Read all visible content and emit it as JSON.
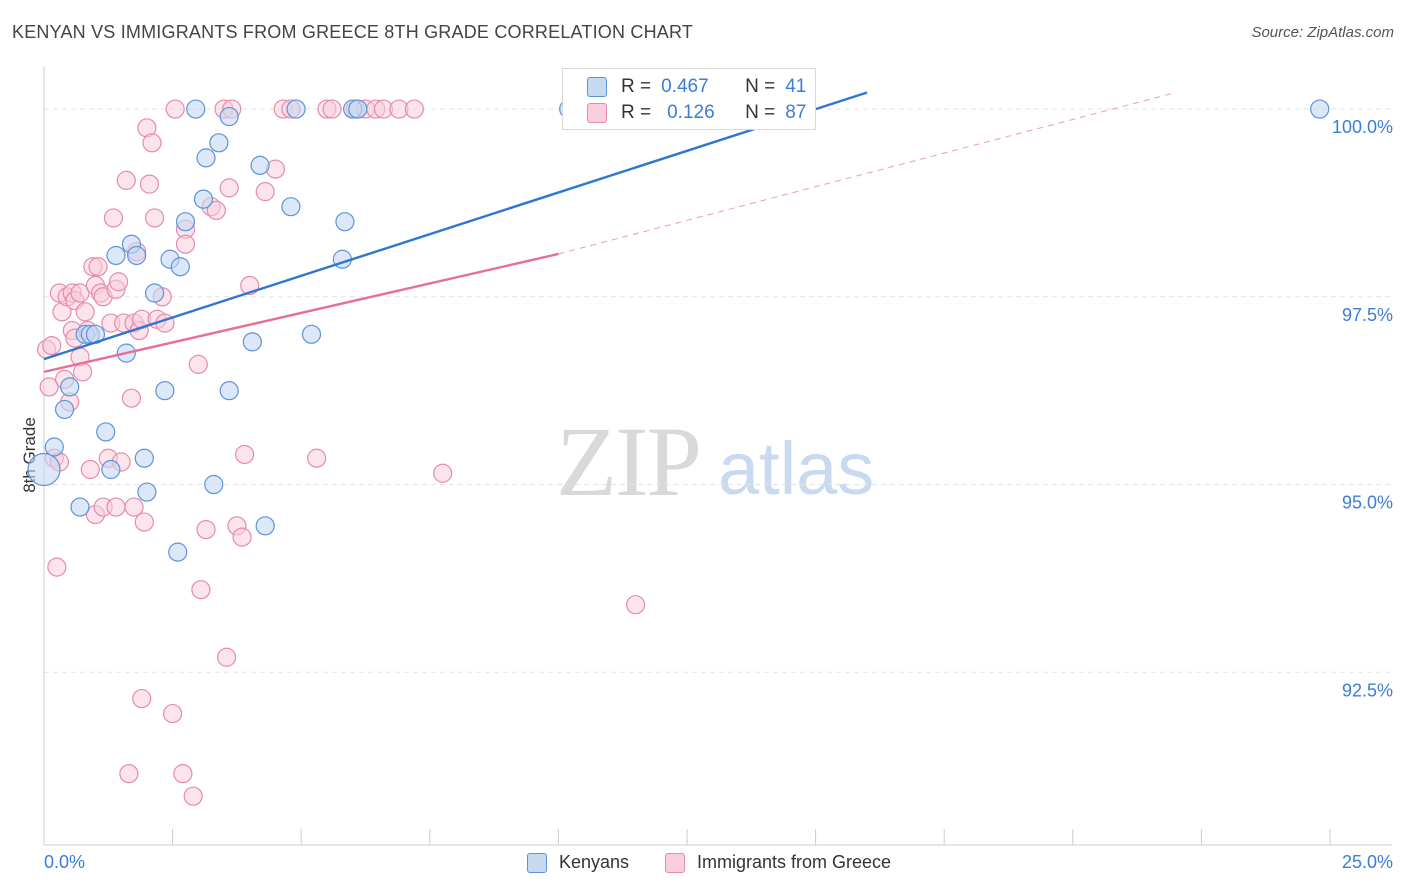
{
  "title": "KENYAN VS IMMIGRANTS FROM GREECE 8TH GRADE CORRELATION CHART",
  "source": "Source: ZipAtlas.com",
  "watermark": {
    "zip": "ZIP",
    "atlas": "atlas"
  },
  "stats": [
    {
      "r_label": "R =",
      "r_value": "0.467",
      "n_label": "N =",
      "n_value": "41"
    },
    {
      "r_label": "R =",
      "r_value": "0.126",
      "n_label": "N =",
      "n_value": "87"
    }
  ],
  "legend": [
    "Kenyans",
    "Immigrants from Greece"
  ],
  "colors": {
    "blue_fill": "#c5d9f3",
    "blue_stroke": "#5d94d8",
    "blue_line": "#2f76d2",
    "pink_fill": "#f8cedd",
    "pink_stroke": "#e88aab",
    "pink_line": "#e56f98",
    "grid": "#e3e3e3",
    "tick_label": "#3b7dd8"
  },
  "chart_data": {
    "type": "scatter",
    "title": "KENYAN VS IMMIGRANTS FROM GREECE 8TH GRADE CORRELATION CHART",
    "xlabel": "",
    "ylabel": "8th Grade",
    "xlim": [
      0,
      25
    ],
    "ylim": [
      90.2,
      100.4
    ],
    "x_tick_labels": [
      "0.0%",
      "25.0%"
    ],
    "y_ticks": [
      100.0,
      97.5,
      95.0,
      92.5
    ],
    "y_tick_labels": [
      "100.0%",
      "97.5%",
      "95.0%",
      "92.5%"
    ],
    "grid": true,
    "series": [
      {
        "name": "Kenyans",
        "r": 0.467,
        "n": 41,
        "trend": {
          "x0": 0.0,
          "y0": 96.67,
          "x1": 16.0,
          "y1": 100.22,
          "dashed_to": null
        },
        "points": [
          [
            0.2,
            95.5
          ],
          [
            0.0,
            95.2
          ],
          [
            0.4,
            96.0
          ],
          [
            0.5,
            96.3
          ],
          [
            0.7,
            94.7
          ],
          [
            0.8,
            97.0
          ],
          [
            0.9,
            97.0
          ],
          [
            1.0,
            97.0
          ],
          [
            1.2,
            95.7
          ],
          [
            1.3,
            95.2
          ],
          [
            1.4,
            98.05
          ],
          [
            1.6,
            96.75
          ],
          [
            1.7,
            98.2
          ],
          [
            1.8,
            98.05
          ],
          [
            1.95,
            95.35
          ],
          [
            2.0,
            94.9
          ],
          [
            2.15,
            97.55
          ],
          [
            2.35,
            96.25
          ],
          [
            2.45,
            98.0
          ],
          [
            2.6,
            94.1
          ],
          [
            2.65,
            97.9
          ],
          [
            2.75,
            98.5
          ],
          [
            2.95,
            100.0
          ],
          [
            3.1,
            98.8
          ],
          [
            3.15,
            99.35
          ],
          [
            3.3,
            95.0
          ],
          [
            3.4,
            99.55
          ],
          [
            3.6,
            99.9
          ],
          [
            3.6,
            96.25
          ],
          [
            4.05,
            96.9
          ],
          [
            4.2,
            99.25
          ],
          [
            4.3,
            94.45
          ],
          [
            4.8,
            98.7
          ],
          [
            4.9,
            100.0
          ],
          [
            5.2,
            97.0
          ],
          [
            5.8,
            98.0
          ],
          [
            5.85,
            98.5
          ],
          [
            6.0,
            100.0
          ],
          [
            6.1,
            100.0
          ],
          [
            10.2,
            100.0
          ],
          [
            24.8,
            100.0
          ]
        ]
      },
      {
        "name": "Immigrants from Greece",
        "r": 0.126,
        "n": 87,
        "trend": {
          "x0": 0.0,
          "y0": 96.5,
          "x1": 10.0,
          "y1": 98.07,
          "dashed_to": [
            22.0,
            100.22
          ]
        },
        "points": [
          [
            0.05,
            96.8
          ],
          [
            0.1,
            96.3
          ],
          [
            0.15,
            96.85
          ],
          [
            0.2,
            95.35
          ],
          [
            0.25,
            93.9
          ],
          [
            0.3,
            97.55
          ],
          [
            0.3,
            95.3
          ],
          [
            0.35,
            97.3
          ],
          [
            0.4,
            96.4
          ],
          [
            0.45,
            97.5
          ],
          [
            0.5,
            96.1
          ],
          [
            0.55,
            97.05
          ],
          [
            0.55,
            97.55
          ],
          [
            0.6,
            96.95
          ],
          [
            0.6,
            97.45
          ],
          [
            0.7,
            96.7
          ],
          [
            0.7,
            97.55
          ],
          [
            0.75,
            96.5
          ],
          [
            0.8,
            97.3
          ],
          [
            0.85,
            97.05
          ],
          [
            0.9,
            95.2
          ],
          [
            0.95,
            97.9
          ],
          [
            1.0,
            97.65
          ],
          [
            1.0,
            94.6
          ],
          [
            1.05,
            97.9
          ],
          [
            1.1,
            97.55
          ],
          [
            1.15,
            94.7
          ],
          [
            1.15,
            97.5
          ],
          [
            1.25,
            95.35
          ],
          [
            1.3,
            97.15
          ],
          [
            1.35,
            98.55
          ],
          [
            1.4,
            97.6
          ],
          [
            1.4,
            94.7
          ],
          [
            1.45,
            97.7
          ],
          [
            1.5,
            95.3
          ],
          [
            1.55,
            97.15
          ],
          [
            1.6,
            99.05
          ],
          [
            1.65,
            91.15
          ],
          [
            1.7,
            96.15
          ],
          [
            1.75,
            97.15
          ],
          [
            1.75,
            94.7
          ],
          [
            1.8,
            98.1
          ],
          [
            1.85,
            97.05
          ],
          [
            1.9,
            97.2
          ],
          [
            1.9,
            92.15
          ],
          [
            1.95,
            94.5
          ],
          [
            2.0,
            99.75
          ],
          [
            2.05,
            99.0
          ],
          [
            2.1,
            99.55
          ],
          [
            2.15,
            98.55
          ],
          [
            2.2,
            97.2
          ],
          [
            2.3,
            97.5
          ],
          [
            2.35,
            97.15
          ],
          [
            2.5,
            91.95
          ],
          [
            2.55,
            100.0
          ],
          [
            2.7,
            91.15
          ],
          [
            2.75,
            98.4
          ],
          [
            2.75,
            98.2
          ],
          [
            2.9,
            90.85
          ],
          [
            3.0,
            96.6
          ],
          [
            3.05,
            93.6
          ],
          [
            3.15,
            94.4
          ],
          [
            3.25,
            98.7
          ],
          [
            3.35,
            98.65
          ],
          [
            3.5,
            100.0
          ],
          [
            3.55,
            92.7
          ],
          [
            3.6,
            98.95
          ],
          [
            3.65,
            100.0
          ],
          [
            3.75,
            94.45
          ],
          [
            3.85,
            94.3
          ],
          [
            3.9,
            95.4
          ],
          [
            4.0,
            97.65
          ],
          [
            4.3,
            98.9
          ],
          [
            4.5,
            99.2
          ],
          [
            4.65,
            100.0
          ],
          [
            4.8,
            100.0
          ],
          [
            5.3,
            95.35
          ],
          [
            5.5,
            100.0
          ],
          [
            5.6,
            100.0
          ],
          [
            6.05,
            100.0
          ],
          [
            6.25,
            100.0
          ],
          [
            6.45,
            100.0
          ],
          [
            6.6,
            100.0
          ],
          [
            6.9,
            100.0
          ],
          [
            7.2,
            100.0
          ],
          [
            7.75,
            95.15
          ],
          [
            11.5,
            93.4
          ]
        ]
      }
    ]
  }
}
